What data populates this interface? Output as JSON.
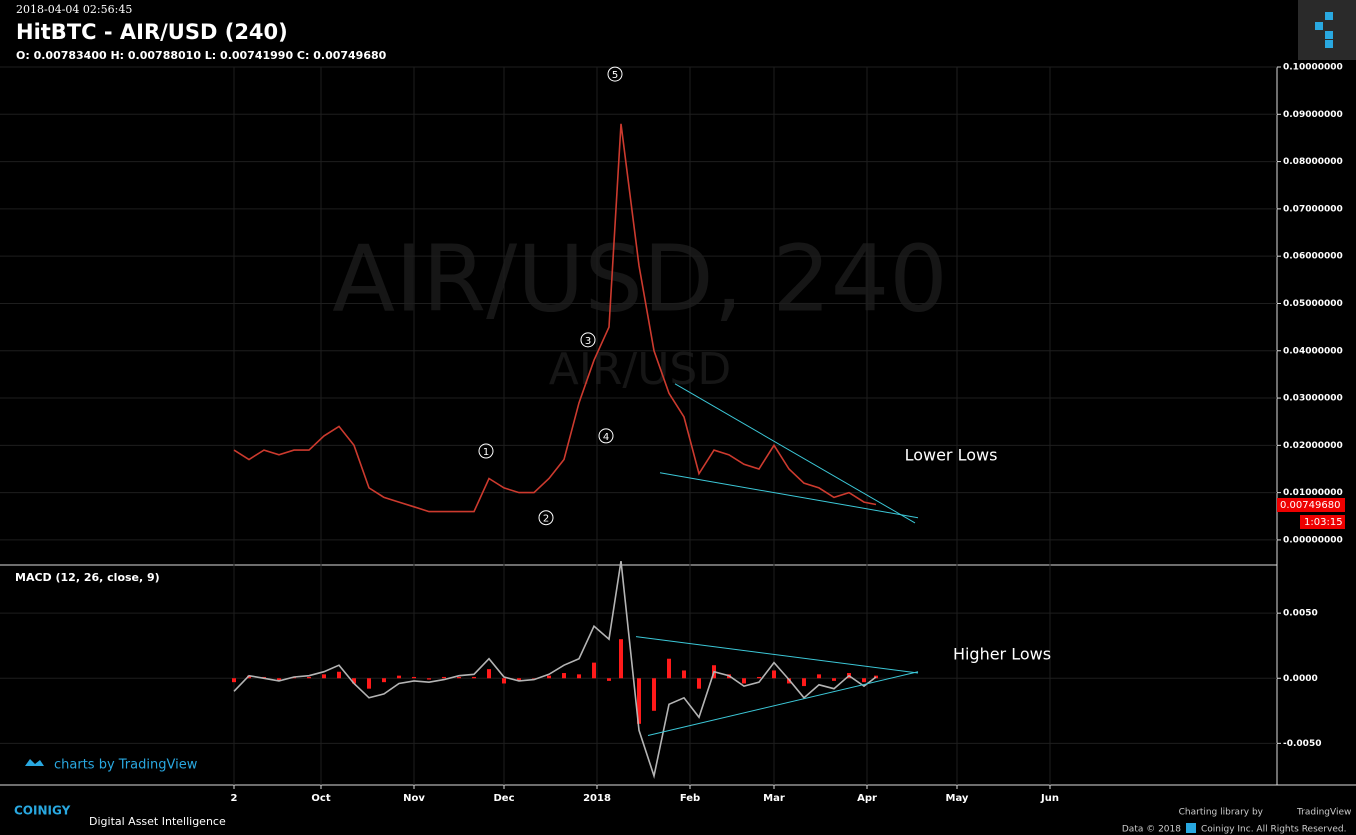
{
  "header": {
    "timestamp": "2018-04-04 02:56:45",
    "title": "HitBTC - AIR/USD (240)",
    "ohlc": "O: 0.00783400 H: 0.00788010 L: 0.00741990 C: 0.00749680"
  },
  "watermark": {
    "main": "AIR/USD, 240",
    "sub": "AIR/USD"
  },
  "price_tag": {
    "price": "0.00749680",
    "countdown": "1:03:15"
  },
  "footer": {
    "tv_badge": "charts by TradingView",
    "brand": "COINIGY",
    "tagline": "Digital Asset Intelligence",
    "library": "Charting library by",
    "library_name": "TradingView",
    "data_note": "Data © 2018",
    "rights": "Coinigy Inc. All Rights Reserved."
  },
  "chart_data": [
    {
      "type": "line",
      "color": "#cc3a2e",
      "grid": true,
      "x": [
        "2017-09-02",
        "2017-09-07",
        "2017-09-12",
        "2017-09-17",
        "2017-09-22",
        "2017-09-27",
        "2017-10-02",
        "2017-10-07",
        "2017-10-12",
        "2017-10-17",
        "2017-10-22",
        "2017-10-27",
        "2017-11-01",
        "2017-11-06",
        "2017-11-11",
        "2017-11-16",
        "2017-11-21",
        "2017-11-26",
        "2017-12-01",
        "2017-12-06",
        "2017-12-11",
        "2017-12-16",
        "2017-12-21",
        "2017-12-26",
        "2017-12-31",
        "2018-01-05",
        "2018-01-09",
        "2018-01-15",
        "2018-01-20",
        "2018-01-25",
        "2018-01-30",
        "2018-02-04",
        "2018-02-09",
        "2018-02-14",
        "2018-02-19",
        "2018-02-24",
        "2018-03-01",
        "2018-03-06",
        "2018-03-11",
        "2018-03-16",
        "2018-03-21",
        "2018-03-26",
        "2018-03-31",
        "2018-04-04"
      ],
      "values": [
        0.019,
        0.017,
        0.019,
        0.018,
        0.019,
        0.019,
        0.022,
        0.024,
        0.02,
        0.011,
        0.009,
        0.008,
        0.007,
        0.006,
        0.006,
        0.006,
        0.006,
        0.013,
        0.011,
        0.01,
        0.01,
        0.013,
        0.017,
        0.029,
        0.038,
        0.045,
        0.088,
        0.058,
        0.04,
        0.031,
        0.026,
        0.014,
        0.019,
        0.018,
        0.016,
        0.015,
        0.02,
        0.015,
        0.012,
        0.011,
        0.009,
        0.01,
        0.008,
        0.0075
      ],
      "xlim": [
        "2017-06-20",
        "2018-08-15"
      ],
      "ylim": [
        -0.0053,
        0.1
      ],
      "yticks": [
        {
          "value": 0,
          "label": "0.00000000"
        },
        {
          "value": 0.01,
          "label": "0.01000000"
        },
        {
          "value": 0.02,
          "label": "0.02000000"
        },
        {
          "value": 0.03,
          "label": "0.03000000"
        },
        {
          "value": 0.04,
          "label": "0.04000000"
        },
        {
          "value": 0.05,
          "label": "0.05000000"
        },
        {
          "value": 0.06,
          "label": "0.06000000"
        },
        {
          "value": 0.07,
          "label": "0.07000000"
        },
        {
          "value": 0.08,
          "label": "0.08000000"
        },
        {
          "value": 0.09,
          "label": "0.09000000"
        },
        {
          "value": 0.1,
          "label": "0.10000000"
        }
      ],
      "waves": [
        {
          "label": "1",
          "x": "2017-11-25",
          "y": 0.0188
        },
        {
          "label": "2",
          "x": "2017-12-15",
          "y": 0.0047
        },
        {
          "label": "3",
          "x": "2017-12-29",
          "y": 0.0423
        },
        {
          "label": "4",
          "x": "2018-01-04",
          "y": 0.022
        },
        {
          "label": "5",
          "x": "2018-01-07",
          "y": 0.0985
        }
      ],
      "annotations": [
        {
          "text": "Lower Lows",
          "x": "2018-04-29",
          "y": 0.0178
        }
      ],
      "trendlines": [
        {
          "x": [
            "2018-01-27",
            "2018-04-17"
          ],
          "y": [
            0.033,
            0.0036
          ]
        },
        {
          "x": [
            "2018-01-22",
            "2018-04-18"
          ],
          "y": [
            0.0142,
            0.0047
          ]
        }
      ],
      "trend_color": "#3cc8d8"
    },
    {
      "type": "macd",
      "title": "MACD (12, 26, close, 9)",
      "color": "#b4b4b4",
      "hist_color": "#ff1a1a",
      "grid": true,
      "x": [
        "2017-09-02",
        "2017-09-07",
        "2017-09-12",
        "2017-09-17",
        "2017-09-22",
        "2017-09-27",
        "2017-10-02",
        "2017-10-07",
        "2017-10-12",
        "2017-10-17",
        "2017-10-22",
        "2017-10-27",
        "2017-11-01",
        "2017-11-06",
        "2017-11-11",
        "2017-11-16",
        "2017-11-21",
        "2017-11-26",
        "2017-12-01",
        "2017-12-06",
        "2017-12-11",
        "2017-12-16",
        "2017-12-21",
        "2017-12-26",
        "2017-12-31",
        "2018-01-05",
        "2018-01-09",
        "2018-01-15",
        "2018-01-20",
        "2018-01-25",
        "2018-01-30",
        "2018-02-04",
        "2018-02-09",
        "2018-02-14",
        "2018-02-19",
        "2018-02-24",
        "2018-03-01",
        "2018-03-06",
        "2018-03-11",
        "2018-03-16",
        "2018-03-21",
        "2018-03-26",
        "2018-03-31",
        "2018-04-04"
      ],
      "values": [
        -0.001,
        0.0002,
        0,
        -0.0002,
        0.0001,
        0.0002,
        0.0005,
        0.001,
        -0.0004,
        -0.0015,
        -0.0012,
        -0.0004,
        -0.0002,
        -0.0003,
        -0.0001,
        0.0002,
        0.0003,
        0.0015,
        0.0001,
        -0.0002,
        -0.0001,
        0.0003,
        0.001,
        0.0015,
        0.004,
        0.003,
        0.009,
        -0.004,
        -0.0075,
        -0.002,
        -0.0015,
        -0.003,
        0.0005,
        0.0002,
        -0.0006,
        -0.0003,
        0.0012,
        -0.0001,
        -0.0015,
        -0.0005,
        -0.0008,
        0.0002,
        -0.0006,
        0.0001
      ],
      "histogram": [
        -0.0003,
        0.0002,
        0.0001,
        -0.0002,
        0.0001,
        0.0001,
        0.0003,
        0.0005,
        -0.0004,
        -0.0008,
        -0.0003,
        0.0002,
        0.0001,
        -0.0001,
        0.0001,
        0.0001,
        0.0001,
        0.0007,
        -0.0004,
        -0.0002,
        0,
        0.0002,
        0.0004,
        0.0003,
        0.0012,
        -0.0002,
        0.003,
        -0.0035,
        -0.0025,
        0.0015,
        0.0006,
        -0.0008,
        0.001,
        0.0003,
        -0.0004,
        0.0001,
        0.0006,
        -0.0004,
        -0.0006,
        0.0003,
        -0.0002,
        0.0004,
        -0.0003,
        0.0002
      ],
      "xlim": [
        "2017-06-20",
        "2018-08-15"
      ],
      "ylim": [
        -0.0082,
        0.0087
      ],
      "yticks": [
        {
          "value": -0.005,
          "label": "-0.0050"
        },
        {
          "value": 0,
          "label": "0.0000"
        },
        {
          "value": 0.005,
          "label": "0.0050"
        }
      ],
      "xticks": [
        {
          "value": "2017-09-02",
          "label": "2"
        },
        {
          "value": "2017-10-01",
          "label": "Oct"
        },
        {
          "value": "2017-11-01",
          "label": "Nov"
        },
        {
          "value": "2017-12-01",
          "label": "Dec"
        },
        {
          "value": "2018-01-01",
          "label": "2018"
        },
        {
          "value": "2018-02-01",
          "label": "Feb"
        },
        {
          "value": "2018-03-01",
          "label": "Mar"
        },
        {
          "value": "2018-04-01",
          "label": "Apr"
        },
        {
          "value": "2018-05-01",
          "label": "May"
        },
        {
          "value": "2018-06-01",
          "label": "Jun"
        }
      ],
      "annotations": [
        {
          "text": "Higher Lows",
          "x": "2018-05-16",
          "y": 0.0018
        }
      ],
      "trendlines": [
        {
          "x": [
            "2018-01-14",
            "2018-04-18"
          ],
          "y": [
            0.0032,
            0.0004
          ]
        },
        {
          "x": [
            "2018-01-18",
            "2018-04-18"
          ],
          "y": [
            -0.0044,
            0.0005
          ]
        }
      ],
      "trend_color": "#3cc8d8"
    }
  ]
}
